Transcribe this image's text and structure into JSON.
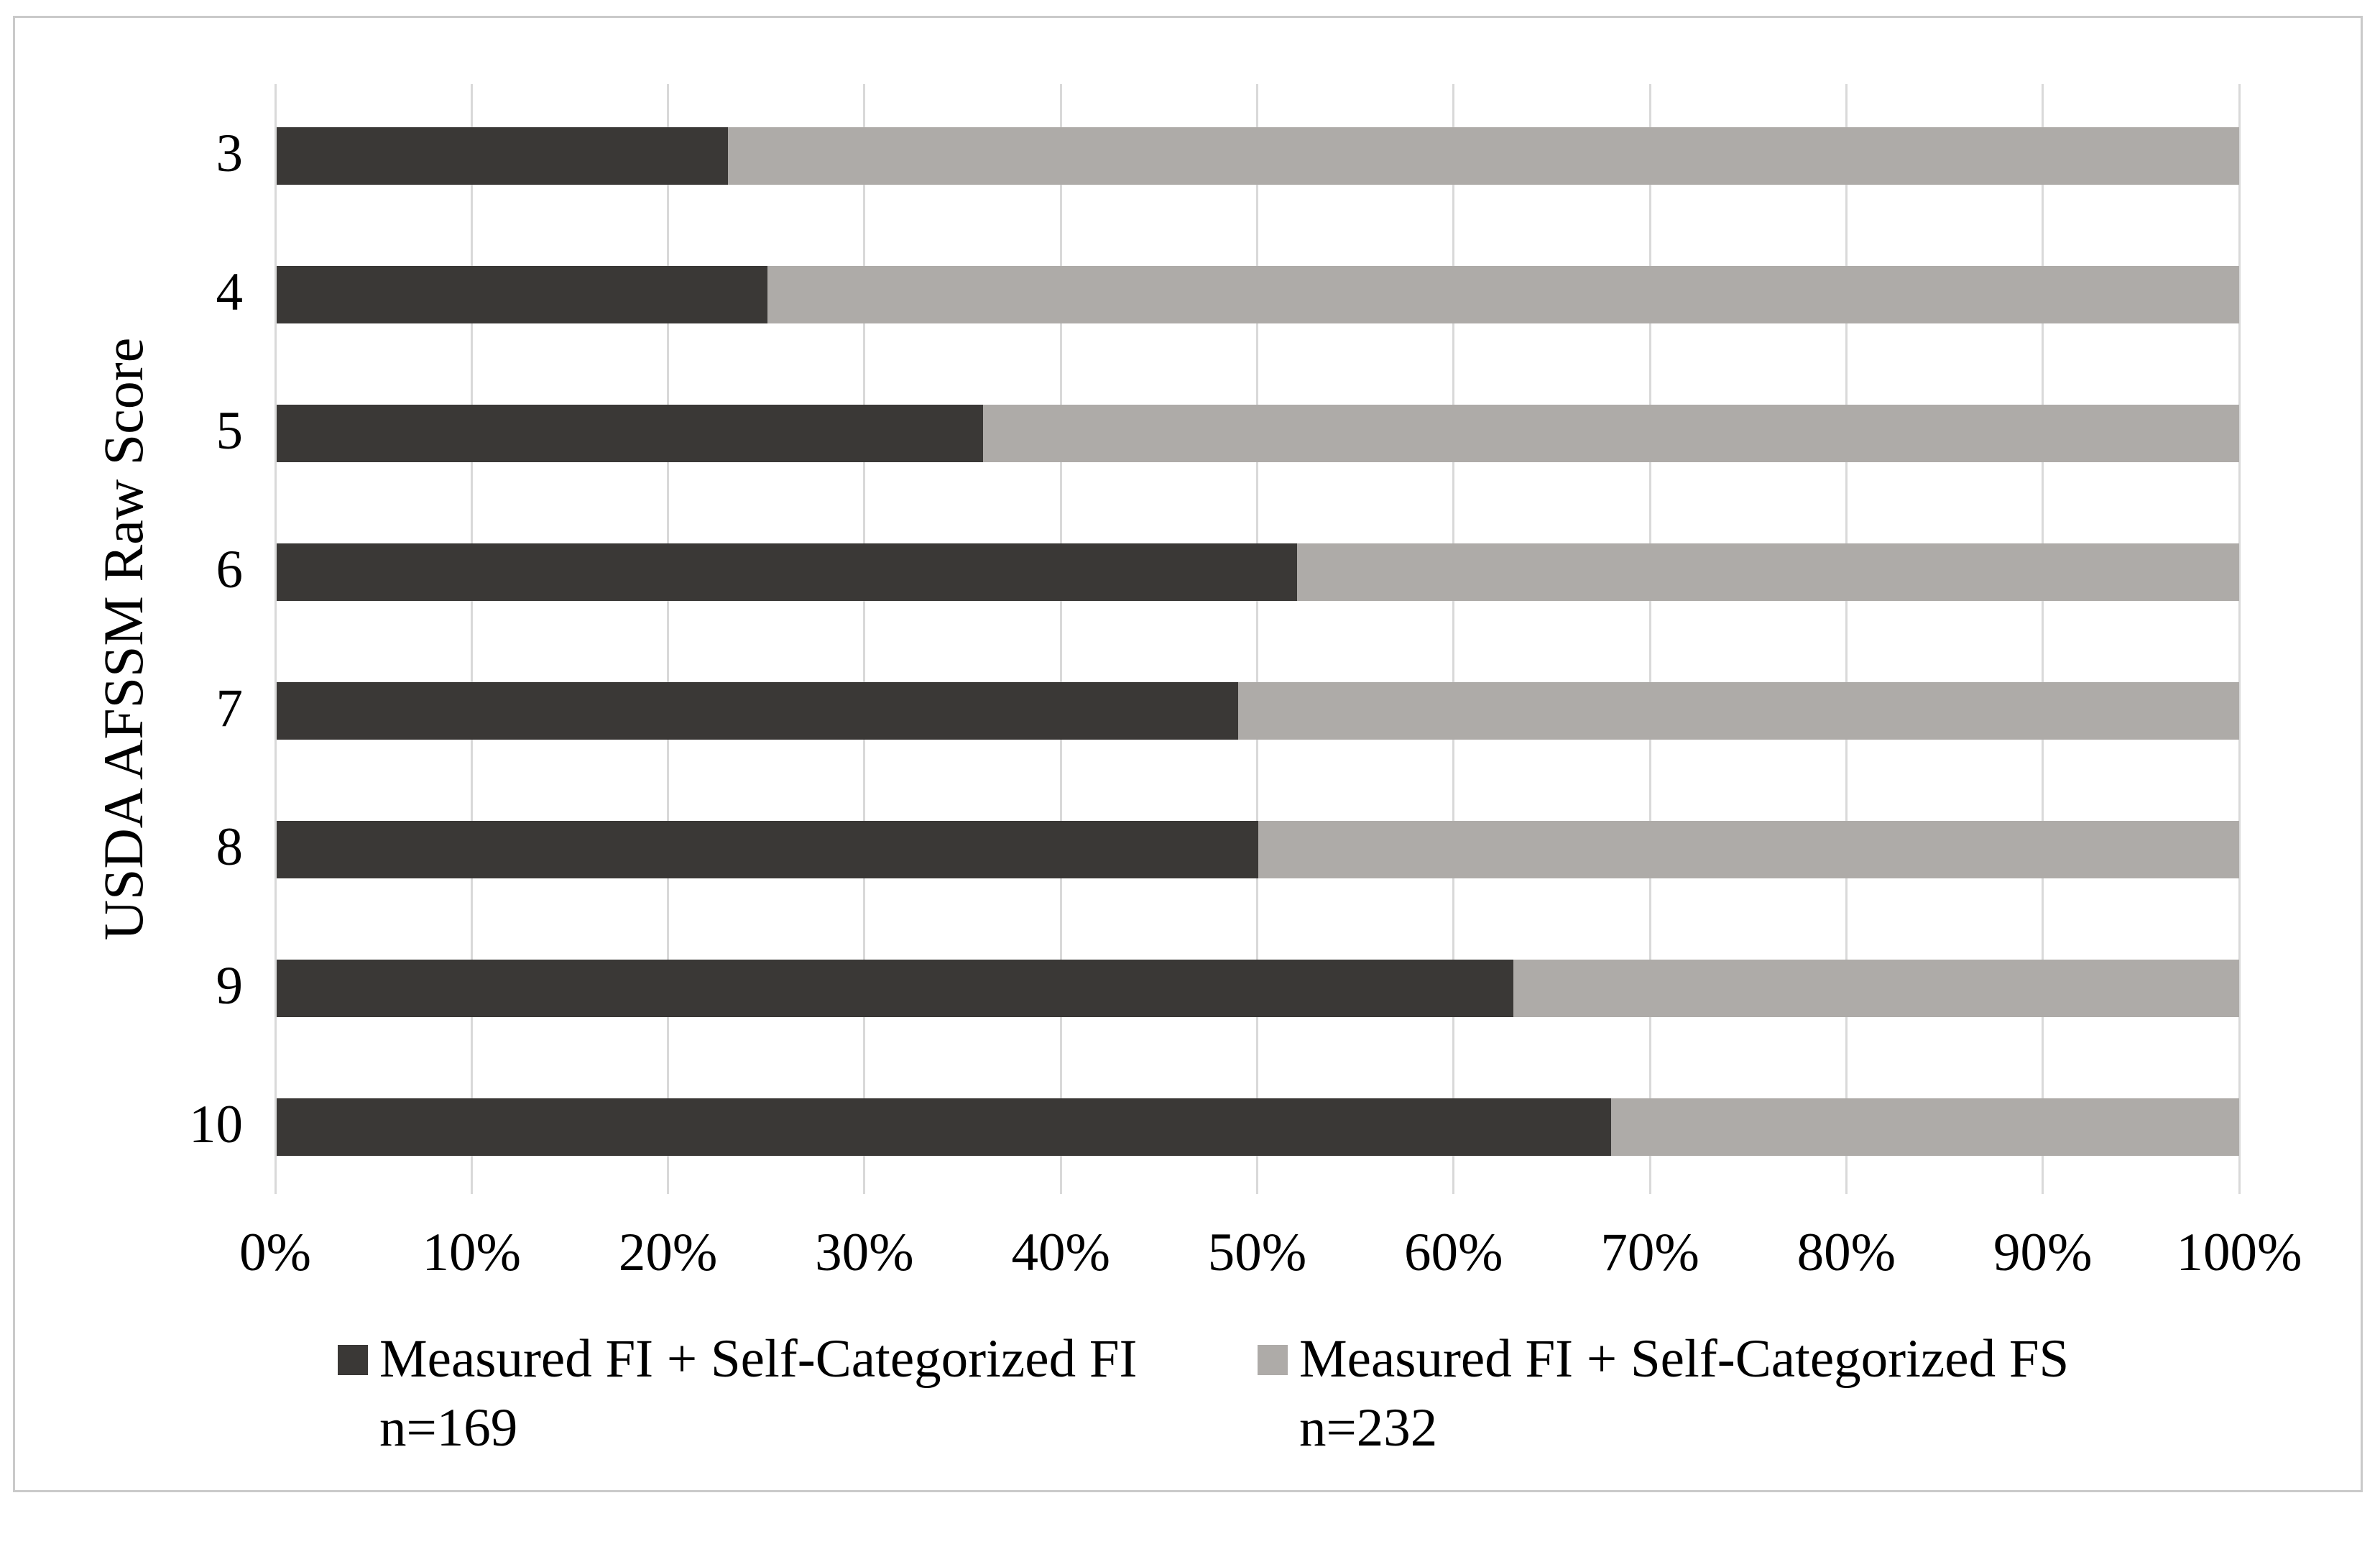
{
  "page": {
    "background": "#FFFFFF",
    "border_color": "#CACACA"
  },
  "chart_data": {
    "type": "bar",
    "orientation": "horizontal",
    "stacked": true,
    "title": "",
    "xlabel": "",
    "ylabel": "USDA AFSSM Raw Score",
    "categories": [
      "3",
      "4",
      "5",
      "6",
      "7",
      "8",
      "9",
      "10"
    ],
    "series": [
      {
        "name": "Measured FI + Self-Categorized FI",
        "n_label": "n=169",
        "color": "#3A3836",
        "values": [
          23,
          25,
          36,
          52,
          49,
          50,
          63,
          68
        ]
      },
      {
        "name": "Measured FI + Self-Categorized FS",
        "n_label": "n=232",
        "color": "#AEABA8",
        "values": [
          77,
          75,
          64,
          48,
          51,
          50,
          37,
          32
        ]
      }
    ],
    "value_unit": "percent",
    "xlim": [
      0,
      100
    ],
    "x_ticks": [
      "0%",
      "10%",
      "20%",
      "30%",
      "40%",
      "50%",
      "60%",
      "70%",
      "80%",
      "90%",
      "100%"
    ],
    "grid": "vertical",
    "gridline_color": "#D9D9D9",
    "legend_position": "bottom"
  }
}
